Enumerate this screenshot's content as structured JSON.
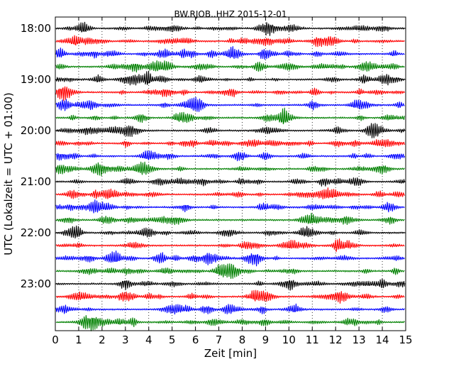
{
  "chart_data": {
    "type": "line",
    "subtype": "seismogram-dayplot",
    "title": "BW.RJOB..HHZ 2015-12-01",
    "xlabel": "Zeit  [min]",
    "ylabel": "UTC (Lokalzeit = UTC + 01:00)",
    "xlim": [
      0,
      15
    ],
    "x_ticks": [
      0,
      1,
      2,
      3,
      4,
      5,
      6,
      7,
      8,
      9,
      10,
      11,
      12,
      13,
      14,
      15
    ],
    "x_tick_labels": [
      "0",
      "1",
      "2",
      "3",
      "4",
      "5",
      "6",
      "7",
      "8",
      "9",
      "10",
      "11",
      "12",
      "13",
      "14",
      "15"
    ],
    "y_tick_labels": [
      "18:00",
      "19:00",
      "20:00",
      "21:00",
      "22:00",
      "23:00"
    ],
    "trace_interval_minutes": 15,
    "traces_per_hour": 4,
    "trace_colors": [
      "#000000",
      "#ff0000",
      "#0000ff",
      "#008000"
    ],
    "trace_start_times": [
      "18:00",
      "18:15",
      "18:30",
      "18:45",
      "19:00",
      "19:15",
      "19:30",
      "19:45",
      "20:00",
      "20:15",
      "20:30",
      "20:45",
      "21:00",
      "21:15",
      "21:30",
      "21:45",
      "22:00",
      "22:15",
      "22:30",
      "22:45",
      "23:00",
      "23:15",
      "23:30",
      "23:45"
    ],
    "grid": "vertical dotted at each minute"
  }
}
